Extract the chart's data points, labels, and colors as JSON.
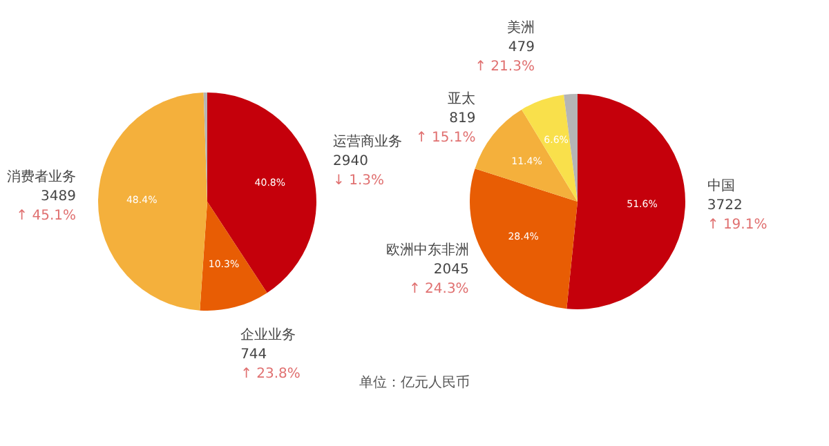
{
  "chart_data": [
    {
      "type": "pie",
      "categories": [
        "运营商业务",
        "企业业务",
        "消费者业务",
        null
      ],
      "values": [
        2940,
        744,
        3489,
        39
      ],
      "colors": [
        "#c5000b",
        "#e85d04",
        "#f4b03c",
        "#b5b5b5"
      ],
      "value_labels": [
        "2940",
        "744",
        "3489",
        null
      ],
      "annotations": [
        "40.8%",
        "↓ 1.3%",
        "10.3%",
        "↑ 23.8%",
        "48.4%",
        "↑ 45.1%"
      ]
    },
    {
      "type": "pie",
      "categories": [
        "中国",
        "欧洲中东非洲",
        "亚太",
        "美洲",
        null
      ],
      "values": [
        3722,
        2045,
        819,
        479,
        147
      ],
      "colors": [
        "#c5000b",
        "#e85d04",
        "#f4b03c",
        "#f9e04b",
        "#b5b5b5"
      ],
      "value_labels": [
        "3722",
        "2045",
        "819",
        "479",
        null
      ],
      "annotations": [
        "51.6%",
        "↑ 19.1%",
        "28.4%",
        "↑ 24.3%",
        "11.4%",
        "↑ 15.1%",
        "6.6%",
        "↑ 21.3%",
        "单位：亿元人民币"
      ]
    }
  ]
}
